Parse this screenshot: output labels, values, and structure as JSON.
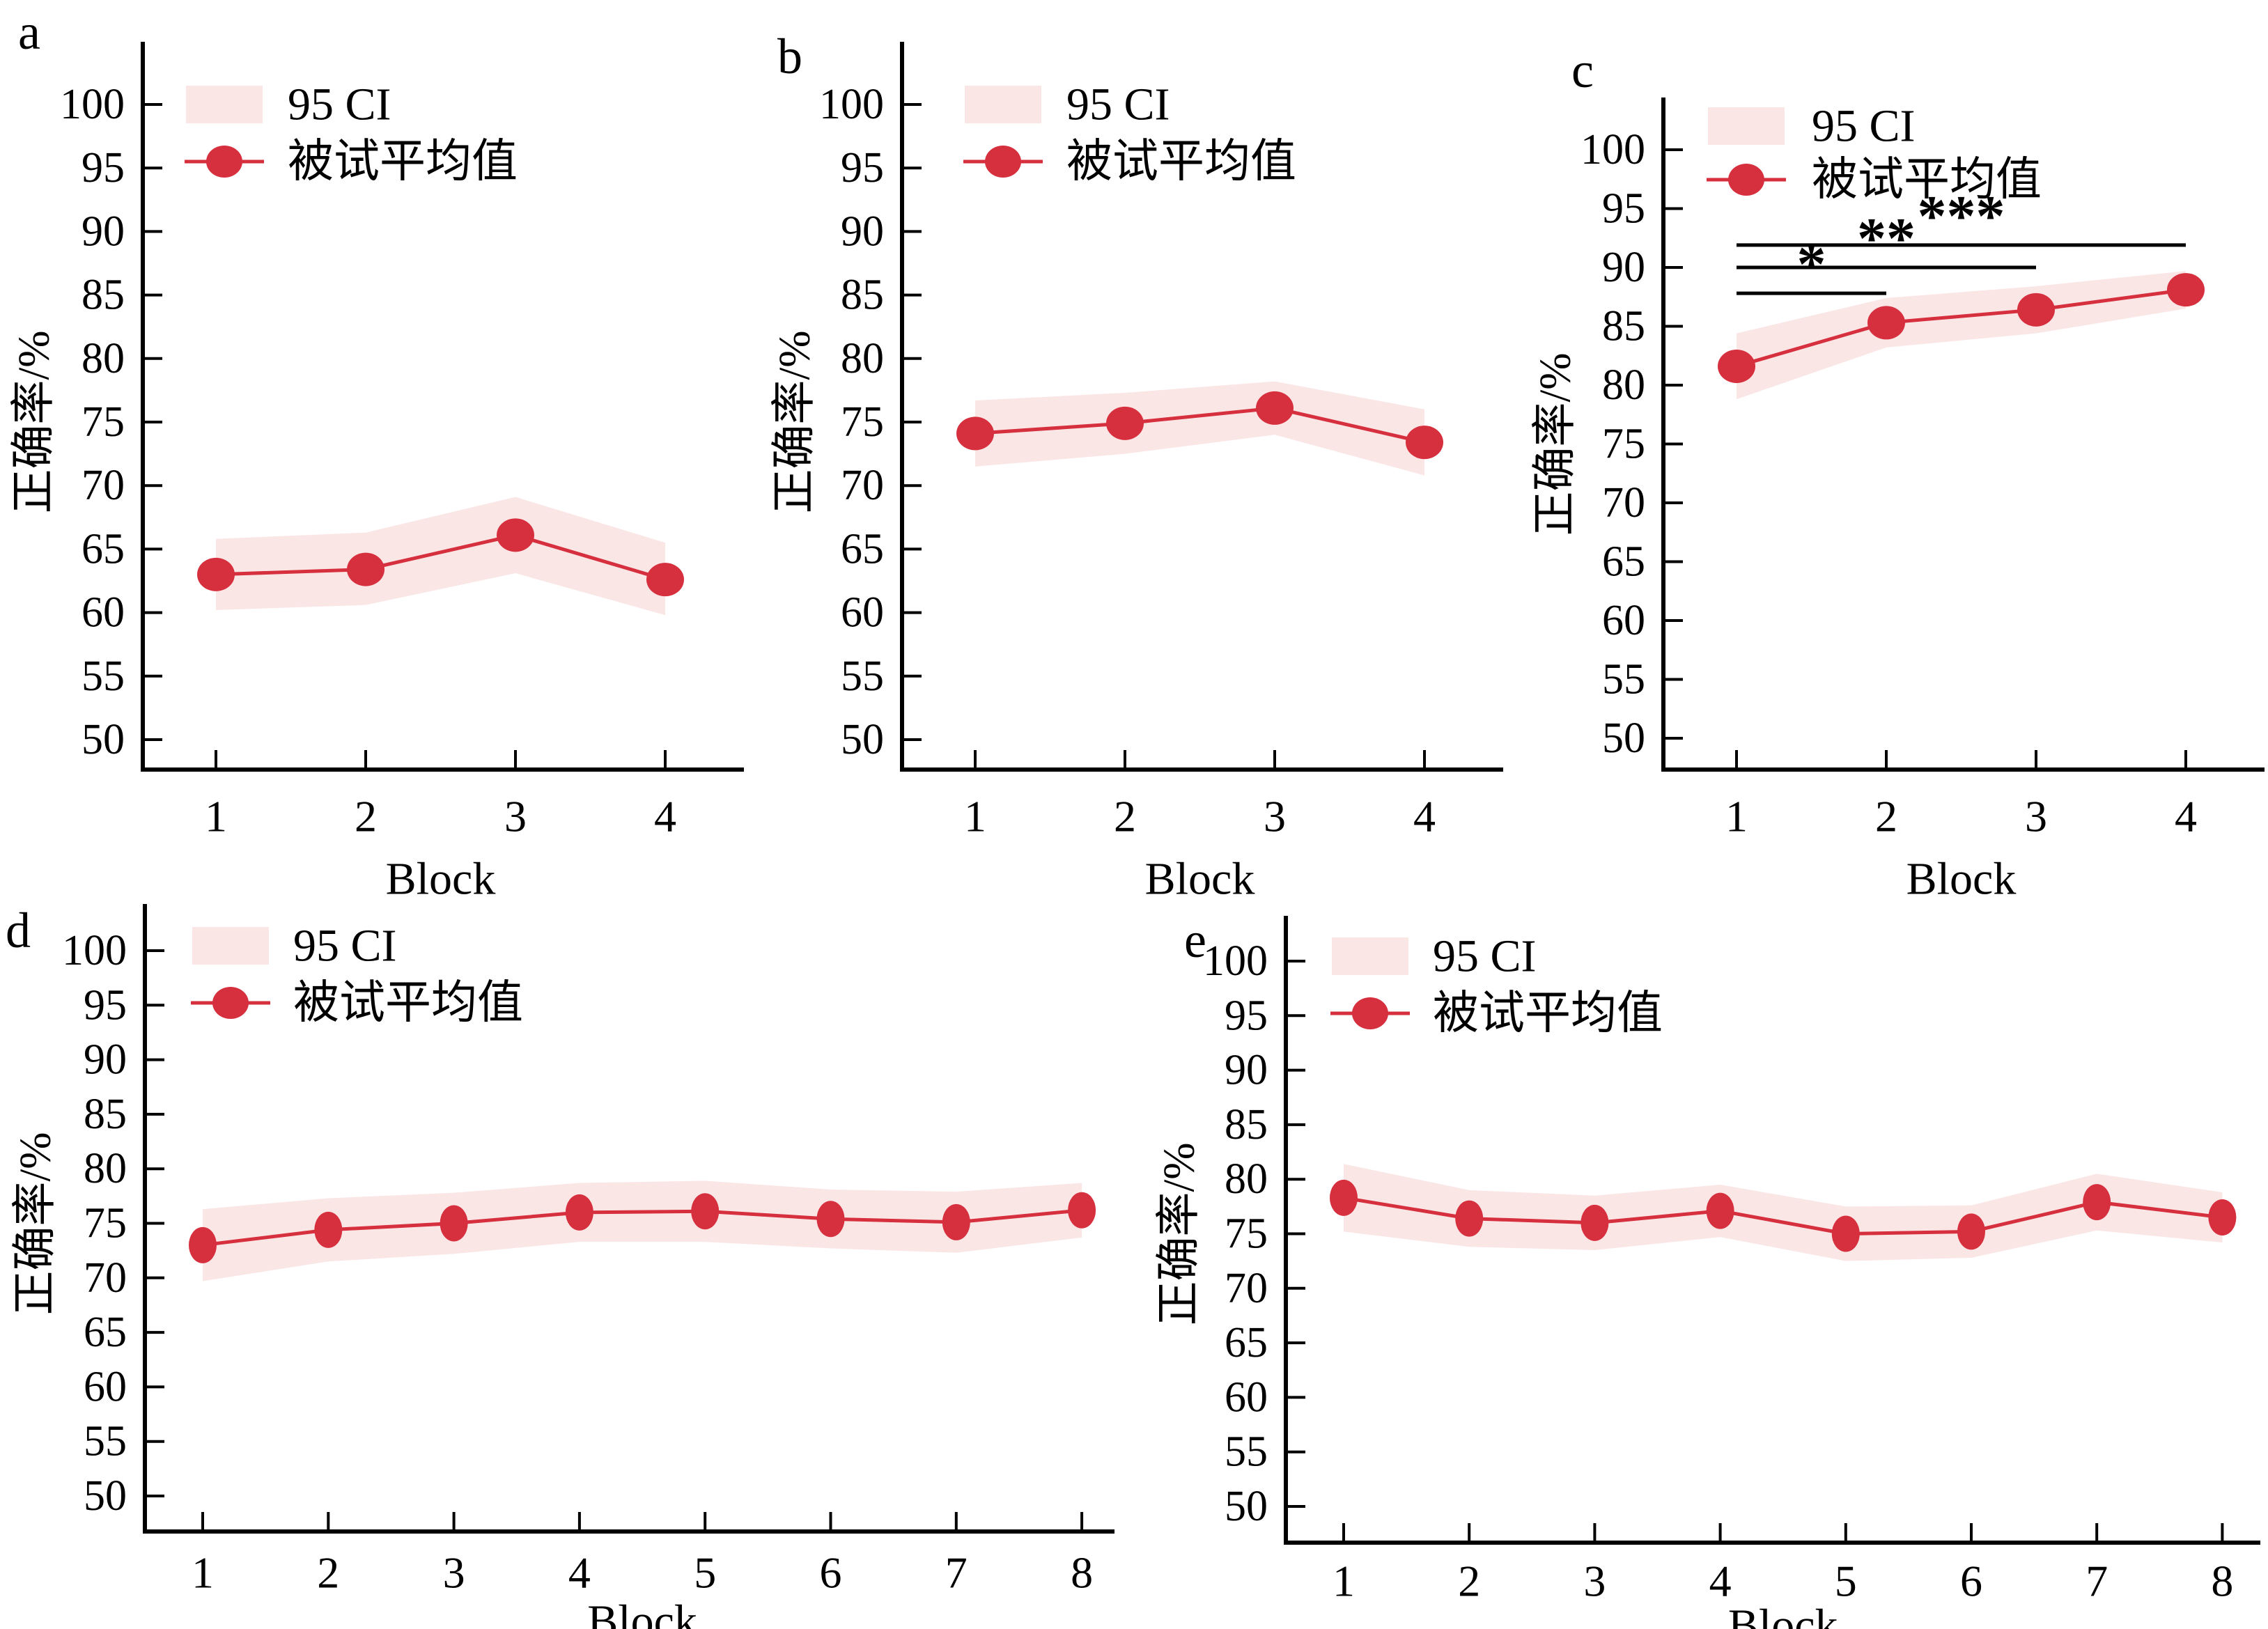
{
  "figure": {
    "description": "Accuracy across blocks with 95% confidence bands, five panels",
    "background": "#ffffff"
  },
  "colors": {
    "accent_red": "#D62F3E",
    "ci_band": "#FBE6E6",
    "axis_black": "#000000"
  },
  "legend": {
    "ci_label": "95 CI",
    "mean_label": "被试平均值"
  },
  "axis": {
    "xlabel": "Block",
    "ylabel": "正确率/%",
    "ylim": [
      50,
      100
    ],
    "yticks": [
      100,
      95,
      90,
      85,
      80,
      75,
      70,
      65,
      60,
      55,
      50
    ]
  },
  "chart_data": [
    {
      "id": "a",
      "type": "line",
      "categories": [
        1,
        2,
        3,
        4
      ],
      "mean": [
        63.0,
        63.4,
        66.1,
        62.6
      ],
      "ci_upper": [
        65.8,
        66.3,
        69.1,
        65.5
      ],
      "ci_lower": [
        60.2,
        60.6,
        63.1,
        59.8
      ],
      "significance": []
    },
    {
      "id": "b",
      "type": "line",
      "categories": [
        1,
        2,
        3,
        4
      ],
      "mean": [
        74.1,
        74.9,
        76.1,
        73.4
      ],
      "ci_upper": [
        76.7,
        77.3,
        78.2,
        76.0
      ],
      "ci_lower": [
        71.5,
        72.5,
        74.0,
        70.8
      ],
      "significance": []
    },
    {
      "id": "c",
      "type": "line",
      "categories": [
        1,
        2,
        3,
        4
      ],
      "mean": [
        81.6,
        85.3,
        86.4,
        88.1
      ],
      "ci_upper": [
        84.4,
        87.4,
        88.4,
        89.7
      ],
      "ci_lower": [
        78.8,
        83.2,
        84.4,
        86.5
      ],
      "significance": [
        {
          "label": "*",
          "from": 1,
          "to": 2,
          "y": 87.8
        },
        {
          "label": "**",
          "from": 1,
          "to": 3,
          "y": 90.0
        },
        {
          "label": "***",
          "from": 1,
          "to": 4,
          "y": 91.9
        }
      ]
    },
    {
      "id": "d",
      "type": "line",
      "categories": [
        1,
        2,
        3,
        4,
        5,
        6,
        7,
        8
      ],
      "mean": [
        73.0,
        74.4,
        75.0,
        76.0,
        76.1,
        75.4,
        75.1,
        76.2
      ],
      "ci_upper": [
        76.3,
        77.3,
        77.8,
        78.7,
        78.9,
        78.1,
        77.9,
        78.7
      ],
      "ci_lower": [
        69.7,
        71.5,
        72.2,
        73.3,
        73.3,
        72.7,
        72.3,
        73.7
      ],
      "significance": []
    },
    {
      "id": "e",
      "type": "line",
      "categories": [
        1,
        2,
        3,
        4,
        5,
        6,
        7,
        8
      ],
      "mean": [
        78.3,
        76.4,
        76.0,
        77.1,
        75.0,
        75.2,
        77.9,
        76.5
      ],
      "ci_upper": [
        81.4,
        79.0,
        78.5,
        79.5,
        77.5,
        77.6,
        80.5,
        78.8
      ],
      "ci_lower": [
        75.2,
        73.8,
        73.5,
        74.7,
        72.5,
        72.8,
        75.3,
        74.2
      ],
      "significance": []
    }
  ]
}
